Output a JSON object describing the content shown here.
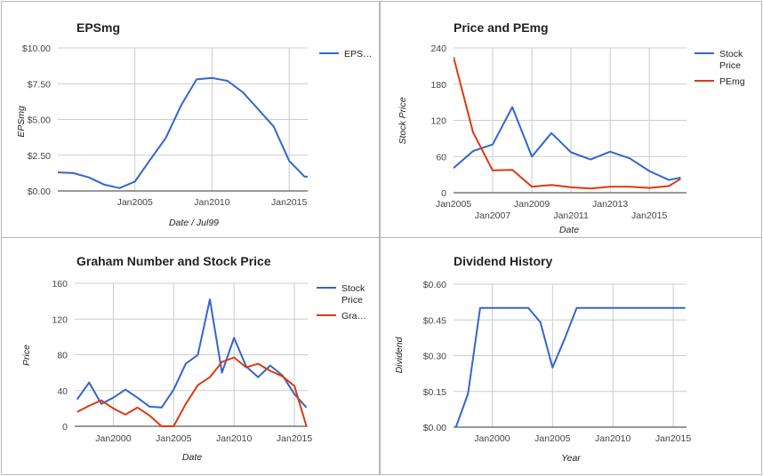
{
  "chart_data": [
    {
      "id": "eps",
      "type": "line",
      "title": "EPSmg",
      "xlabel": "Date / Jul99",
      "ylabel": "EPSmg",
      "x_ticks": [
        "Jan2005",
        "Jan2010",
        "Jan2015"
      ],
      "y_ticks": [
        "$0.00",
        "$2.50",
        "$5.00",
        "$7.50",
        "$10.00"
      ],
      "xlim": [
        2000,
        2016.2
      ],
      "ylim": [
        0,
        10
      ],
      "grid": true,
      "legend_position": "right",
      "series": [
        {
          "name": "EPS…",
          "color": "#3366cc",
          "x": [
            2000,
            2001,
            2002,
            2003,
            2004,
            2005,
            2006,
            2007,
            2008,
            2009,
            2010,
            2011,
            2012,
            2013,
            2014,
            2015,
            2016,
            2016.5
          ],
          "y": [
            1.3,
            1.25,
            0.95,
            0.45,
            0.2,
            0.65,
            2.2,
            3.7,
            6.0,
            7.8,
            7.9,
            7.7,
            6.9,
            5.7,
            4.5,
            2.1,
            1.0,
            1.0
          ]
        }
      ]
    },
    {
      "id": "price-pe",
      "type": "line",
      "title": "Price and PEmg",
      "xlabel": "Date",
      "ylabel": "Stock Price",
      "x_ticks_row1": [
        "Jan2005",
        "Jan2009",
        "Jan2013"
      ],
      "x_ticks_row2": [
        "Jan2007",
        "Jan2011",
        "Jan2015"
      ],
      "y_ticks": [
        "0",
        "60",
        "120",
        "180",
        "240"
      ],
      "xlim": [
        2005,
        2016.9
      ],
      "ylim": [
        0,
        240
      ],
      "grid": true,
      "legend_position": "right",
      "series": [
        {
          "name": "Stock Price",
          "color": "#3366cc",
          "x": [
            2005,
            2006,
            2007,
            2008,
            2009,
            2010,
            2011,
            2012,
            2013,
            2014,
            2015,
            2016,
            2016.6
          ],
          "y": [
            41,
            69,
            80,
            142,
            60,
            99,
            67,
            55,
            68,
            57,
            36,
            21,
            25
          ]
        },
        {
          "name": "PEmg",
          "color": "#dc3912",
          "x": [
            2005,
            2006,
            2007,
            2008,
            2009,
            2010,
            2011,
            2012,
            2013,
            2014,
            2015,
            2016,
            2016.6
          ],
          "y": [
            225,
            100,
            37,
            38,
            10,
            13,
            9,
            7,
            10,
            10,
            8,
            11,
            23
          ]
        }
      ]
    },
    {
      "id": "graham",
      "type": "line",
      "title": "Graham Number and Stock Price",
      "xlabel": "Date",
      "ylabel": "Price",
      "x_ticks": [
        "Jan2000",
        "Jan2005",
        "Jan2010",
        "Jan2015"
      ],
      "y_ticks": [
        "0",
        "40",
        "80",
        "120",
        "160"
      ],
      "xlim": [
        1996.8,
        2016.1
      ],
      "ylim": [
        0,
        160
      ],
      "grid": true,
      "legend_position": "right",
      "series": [
        {
          "name": "Stock Price",
          "color": "#3366cc",
          "x": [
            1997,
            1998,
            1999,
            2000,
            2001,
            2002,
            2003,
            2004,
            2005,
            2006,
            2007,
            2008,
            2009,
            2010,
            2011,
            2012,
            2013,
            2014,
            2015,
            2016
          ],
          "y": [
            30,
            49,
            25,
            32,
            41,
            32,
            22,
            21,
            41,
            70,
            80,
            142,
            60,
            99,
            67,
            55,
            68,
            57,
            36,
            21
          ]
        },
        {
          "name": "Gra…",
          "color": "#dc3912",
          "x": [
            1997,
            1998,
            1999,
            2000,
            2001,
            2002,
            2003,
            2004,
            2005,
            2006,
            2007,
            2008,
            2009,
            2010,
            2011,
            2012,
            2013,
            2014,
            2015,
            2016
          ],
          "y": [
            16,
            23,
            29,
            20,
            13,
            21,
            12,
            0,
            0,
            25,
            46,
            55,
            72,
            77,
            66,
            70,
            62,
            56,
            45,
            0
          ]
        }
      ]
    },
    {
      "id": "dividend",
      "type": "line",
      "title": "Dividend History",
      "xlabel": "Year",
      "ylabel": "Dividend",
      "x_ticks": [
        "Jan2000",
        "Jan2005",
        "Jan2010",
        "Jan2015"
      ],
      "y_ticks": [
        "$0.00",
        "$0.15",
        "$0.30",
        "$0.45",
        "$0.60"
      ],
      "xlim": [
        1996.8,
        2016.1
      ],
      "ylim": [
        0,
        0.6
      ],
      "grid": true,
      "legend_position": "none",
      "series": [
        {
          "name": "",
          "color": "#3366cc",
          "x": [
            1997,
            1998,
            1999,
            2000,
            2001,
            2002,
            2003,
            2004,
            2005,
            2006,
            2007,
            2008,
            2009,
            2010,
            2011,
            2012,
            2013,
            2014,
            2015,
            2016
          ],
          "y": [
            0.0,
            0.14,
            0.5,
            0.5,
            0.5,
            0.5,
            0.5,
            0.44,
            0.25,
            0.37,
            0.5,
            0.5,
            0.5,
            0.5,
            0.5,
            0.5,
            0.5,
            0.5,
            0.5,
            0.5
          ]
        }
      ]
    }
  ]
}
